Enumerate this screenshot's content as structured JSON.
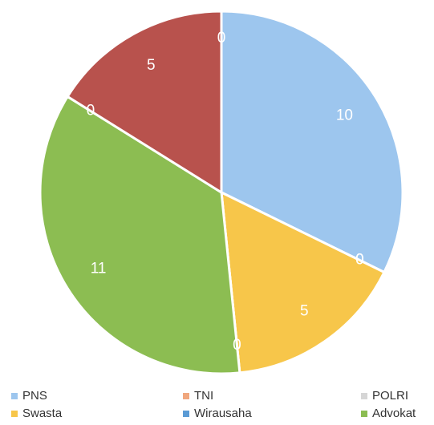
{
  "chart_data": {
    "type": "pie",
    "categories": [
      "PNS",
      "TNI",
      "POLRI",
      "Swasta",
      "Wirausaha",
      "Advokat",
      null,
      null,
      null
    ],
    "values": [
      10,
      0,
      0,
      5,
      0,
      11,
      0,
      5,
      0
    ],
    "colors": [
      "#9dc6ee",
      "#f0a77e",
      "#d6d6d6",
      "#f7c64a",
      "#5b9bd5",
      "#8cbd52",
      "#3f6fb0",
      "#b8524d",
      "#6e9a3c"
    ]
  }
}
